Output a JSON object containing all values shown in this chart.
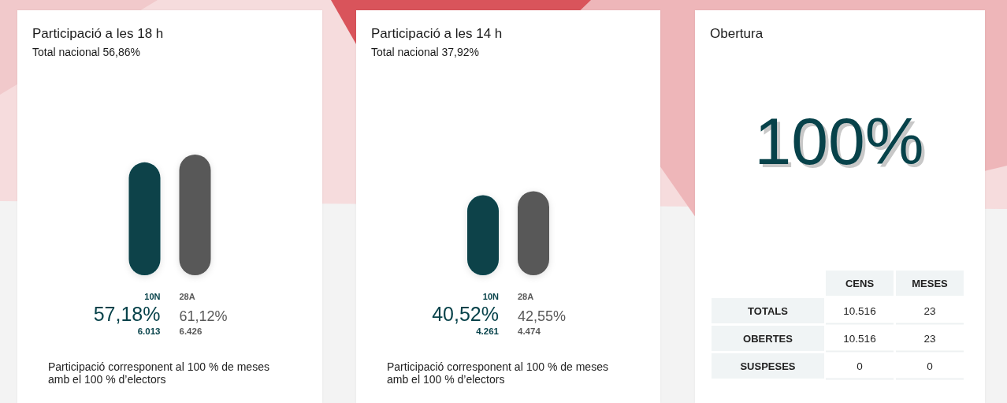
{
  "chart_data": [
    {
      "type": "bar",
      "title": "Participació a les 18 h",
      "subtitle": "Total nacional 56,86%",
      "categories": [
        "10N",
        "28A"
      ],
      "values": [
        57.18,
        61.12
      ],
      "colors": [
        "#07424a",
        "#595959"
      ],
      "value_labels": [
        "57,18%",
        "61,12%"
      ],
      "annotations": [
        "6.013",
        "6.426",
        "Participació corresponent al 100 % de meses amb el 100 % d’electors"
      ]
    },
    {
      "type": "bar",
      "title": "Participació a les 14 h",
      "subtitle": "Total nacional 37,92%",
      "categories": [
        "10N",
        "28A"
      ],
      "values": [
        40.52,
        42.55
      ],
      "colors": [
        "#07424a",
        "#595959"
      ],
      "value_labels": [
        "40,52%",
        "42,55%"
      ],
      "annotations": [
        "4.261",
        "4.474",
        "Participació corresponent al 100 % de meses amb el 100 % d’electors"
      ]
    },
    {
      "type": "other",
      "title": "Obertura",
      "annotations": [
        "100%"
      ],
      "categories": [
        "TOTALS",
        "OBERTES",
        "SUSPESES"
      ],
      "series": [
        {
          "name": "CENS",
          "values": [
            10516,
            10516,
            0
          ],
          "value_labels": [
            "10.516",
            "10.516",
            "0"
          ]
        },
        {
          "name": "MESES",
          "values": [
            23,
            23,
            0
          ],
          "value_labels": [
            "23",
            "23",
            "0"
          ]
        }
      ]
    }
  ]
}
